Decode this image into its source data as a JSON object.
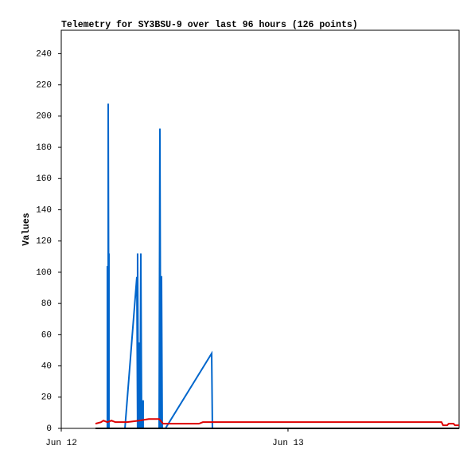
{
  "chart_data": {
    "type": "line",
    "title": "Telemetry for SY3BSU-9 over last 96 hours (126 points)",
    "ylabel": "Values",
    "xlim": [
      0,
      42.11
    ],
    "ylim": [
      0,
      255
    ],
    "xticks": [
      {
        "value": 0,
        "label": "Jun 12"
      },
      {
        "value": 24,
        "label": "Jun 13"
      }
    ],
    "yticks": [
      0,
      20,
      40,
      60,
      80,
      100,
      120,
      140,
      160,
      180,
      200,
      220,
      240
    ],
    "series": [
      {
        "color": "#0066cc",
        "x": [
          4.88,
          4.88,
          4.97,
          4.97,
          5.05,
          5.05,
          5.05,
          6.74,
          8.0,
          8.08,
          8.08,
          8.17,
          8.25,
          8.34,
          8.42,
          8.51,
          8.67,
          8.67,
          10.36,
          10.44,
          10.53,
          10.53,
          10.61,
          10.69,
          11.03,
          15.92,
          16.0
        ],
        "values": [
          0,
          104,
          0,
          208,
          0,
          112,
          0,
          0,
          97,
          0,
          112,
          0,
          55,
          0,
          112,
          0,
          18,
          0,
          0,
          192,
          0,
          97,
          97,
          0,
          0,
          48,
          0
        ]
      },
      {
        "color": "#dd0000",
        "x": [
          3.62,
          4.21,
          4.46,
          4.88,
          5.31,
          5.73,
          6.99,
          8.25,
          9.26,
          10.36,
          10.78,
          14.57,
          14.99,
          40.25,
          40.42,
          40.84,
          41.01,
          41.52,
          41.68,
          42.11
        ],
        "values": [
          3,
          4,
          5,
          4,
          5,
          4,
          4,
          5,
          6,
          6,
          3,
          3,
          4,
          4,
          2,
          2,
          3,
          3,
          2,
          2
        ]
      },
      {
        "color": "#000000",
        "x": [
          3.62,
          42.11
        ],
        "values": [
          0,
          0
        ]
      }
    ]
  }
}
